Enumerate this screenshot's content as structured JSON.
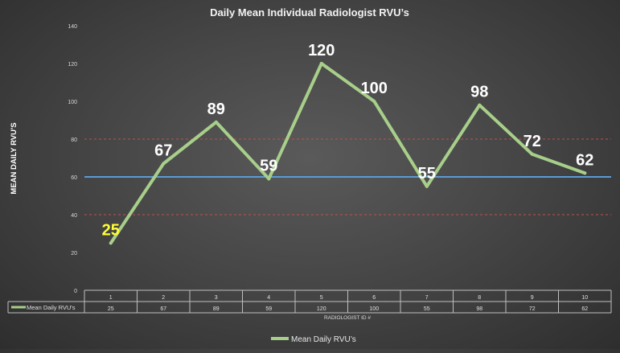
{
  "chart_data": {
    "type": "line",
    "title": "Daily Mean Individual Radiologist RVU’s",
    "xlabel": "RADIOLOGIST ID #",
    "ylabel": "MEAN DAILY RVU'S",
    "ylim": [
      0,
      140
    ],
    "yticks": [
      "0",
      "20",
      "40",
      "60",
      "80",
      "100",
      "120",
      "140"
    ],
    "grid": false,
    "legend": "bottom",
    "categories": [
      "1",
      "2",
      "3",
      "4",
      "5",
      "6",
      "7",
      "8",
      "9",
      "10"
    ],
    "series": [
      {
        "name": "Mean Daily RVU's",
        "values": [
          25,
          67,
          89,
          59,
          120,
          100,
          55,
          98,
          72,
          62
        ],
        "labels": [
          "25",
          "67",
          "89",
          "59",
          "120",
          "100",
          "55",
          "98",
          "72",
          "62"
        ],
        "value_cells": [
          "25",
          "67",
          "89",
          "59",
          "120",
          "100",
          "55",
          "98",
          "72",
          "62"
        ],
        "color": "#a8cf8a"
      }
    ],
    "highlight_label_color": "#ffff33",
    "data_label_color": "#ffffff",
    "reference_lines": [
      {
        "value": 60,
        "color": "#5b9bd5",
        "style": "solid"
      },
      {
        "value": 80,
        "color": "#c0504d",
        "style": "dashed"
      },
      {
        "value": 40,
        "color": "#c0504d",
        "style": "dashed"
      }
    ],
    "legend_label": "Mean Daily RVU’s",
    "table_series_label": "Mean Daily RVU's"
  }
}
